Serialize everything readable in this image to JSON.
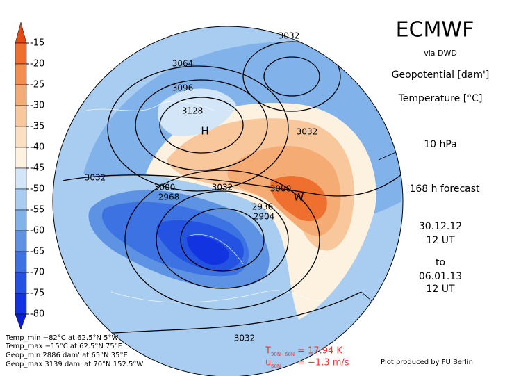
{
  "header": {
    "title": "ECMWF",
    "source": "via DWD",
    "field1": "Geopotential [dam']",
    "field2": "Temperature [°C]",
    "level": "10 hPa",
    "forecast": "168 h forecast",
    "init_date": "30.12.12",
    "init_time": "12 UT",
    "to": "to",
    "valid_date": "06.01.13",
    "valid_time": "12 UT"
  },
  "colorbar": {
    "labels": [
      -15,
      -20,
      -25,
      -30,
      -35,
      -40,
      -45,
      -50,
      -55,
      -60,
      -65,
      -70,
      -75,
      -80
    ],
    "colors": [
      "#e54a14",
      "#ee6f2e",
      "#f28e50",
      "#f5ab74",
      "#f8c79c",
      "#fbdfc2",
      "#fdf1e0",
      "#d2e6f8",
      "#a9cdf0",
      "#82b2ea",
      "#5e93e4",
      "#3d72e2",
      "#2453e2",
      "#1234e0",
      "#0a1ed8"
    ]
  },
  "contours": [
    "3032",
    "3064",
    "3096",
    "3128",
    "H",
    "3032",
    "3032",
    "3000",
    "3032",
    "3000",
    "2968",
    "2936",
    "2904",
    "W",
    "3032"
  ],
  "stats": [
    "Temp_min −82°C at 62.5°N 5°W",
    "Temp_max −15°C at 62.5°N 75°E",
    "Geop_min 2886 dam' at 65°N 35°E",
    "Geop_max 3139 dam' at 70°N 152.5°W"
  ],
  "indices": {
    "t_label": "T",
    "t_sub": "90N−60N",
    "t_value": "= 17.94 K",
    "u_label": "u",
    "u_sub": "60N",
    "u_value": "= −1.3 m/s"
  },
  "credit": "Plot produced by FU Berlin"
}
